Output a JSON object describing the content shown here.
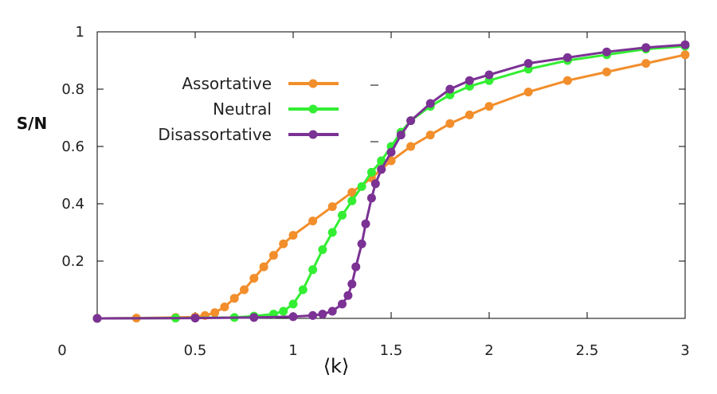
{
  "chart_data": {
    "type": "line",
    "xlabel": "⟨k⟩",
    "ylabel": "S/N",
    "xlim": [
      0,
      3
    ],
    "ylim": [
      0,
      1
    ],
    "xticks": [
      0,
      0.5,
      1,
      1.5,
      2,
      2.5,
      3
    ],
    "xtick_labels": [
      "0",
      "0.5",
      "1",
      "1.5",
      "2",
      "2.5",
      "3"
    ],
    "yticks": [
      0.2,
      0.4,
      0.6,
      0.8,
      1
    ],
    "ytick_labels": [
      "0.2",
      "0.4",
      "0.6",
      "0.8",
      "1"
    ],
    "grid": false,
    "legend_position": "top-left",
    "series": [
      {
        "name": "Assortative",
        "color": "#f28e2b",
        "x": [
          0,
          0.2,
          0.4,
          0.5,
          0.55,
          0.6,
          0.65,
          0.7,
          0.75,
          0.8,
          0.85,
          0.9,
          0.95,
          1.0,
          1.1,
          1.2,
          1.3,
          1.4,
          1.45,
          1.5,
          1.6,
          1.7,
          1.8,
          1.9,
          2.0,
          2.2,
          2.4,
          2.6,
          2.8,
          3.0
        ],
        "y": [
          0,
          0.001,
          0.003,
          0.005,
          0.01,
          0.02,
          0.04,
          0.07,
          0.1,
          0.14,
          0.18,
          0.22,
          0.26,
          0.29,
          0.34,
          0.39,
          0.44,
          0.49,
          0.52,
          0.55,
          0.6,
          0.64,
          0.68,
          0.71,
          0.74,
          0.79,
          0.83,
          0.86,
          0.89,
          0.92
        ]
      },
      {
        "name": "Neutral",
        "color": "#33ee33",
        "x": [
          0,
          0.4,
          0.7,
          0.8,
          0.9,
          0.95,
          1.0,
          1.05,
          1.1,
          1.15,
          1.2,
          1.25,
          1.3,
          1.35,
          1.4,
          1.45,
          1.5,
          1.55,
          1.6,
          1.7,
          1.8,
          1.9,
          2.0,
          2.2,
          2.4,
          2.6,
          2.8,
          3.0
        ],
        "y": [
          0,
          0.001,
          0.003,
          0.008,
          0.015,
          0.025,
          0.05,
          0.1,
          0.17,
          0.24,
          0.3,
          0.36,
          0.41,
          0.46,
          0.51,
          0.55,
          0.6,
          0.65,
          0.69,
          0.74,
          0.78,
          0.81,
          0.83,
          0.87,
          0.9,
          0.92,
          0.94,
          0.95
        ]
      },
      {
        "name": "Disassortative",
        "color": "#7b3294",
        "x": [
          0,
          0.5,
          0.8,
          1.0,
          1.1,
          1.15,
          1.2,
          1.25,
          1.28,
          1.3,
          1.32,
          1.35,
          1.37,
          1.4,
          1.42,
          1.45,
          1.5,
          1.55,
          1.6,
          1.7,
          1.8,
          1.9,
          2.0,
          2.2,
          2.4,
          2.6,
          2.8,
          3.0
        ],
        "y": [
          0,
          0.001,
          0.003,
          0.006,
          0.01,
          0.015,
          0.025,
          0.05,
          0.08,
          0.12,
          0.18,
          0.26,
          0.33,
          0.42,
          0.47,
          0.52,
          0.58,
          0.64,
          0.69,
          0.75,
          0.8,
          0.83,
          0.85,
          0.89,
          0.91,
          0.93,
          0.945,
          0.955
        ]
      }
    ]
  }
}
